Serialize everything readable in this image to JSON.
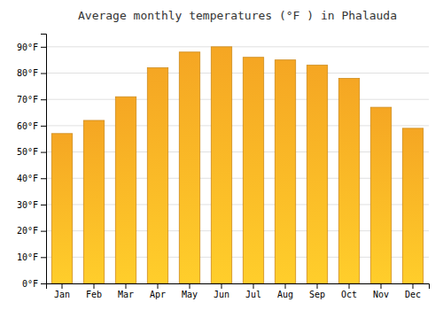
{
  "chart_data": {
    "type": "bar",
    "title": "Average monthly temperatures (°F ) in Phalauda",
    "categories": [
      "Jan",
      "Feb",
      "Mar",
      "Apr",
      "May",
      "Jun",
      "Jul",
      "Aug",
      "Sep",
      "Oct",
      "Nov",
      "Dec"
    ],
    "values": [
      57,
      62,
      71,
      82,
      88,
      90,
      86,
      85,
      83,
      78,
      67,
      59
    ],
    "color": "#F5A623",
    "ylim": [
      0,
      95
    ],
    "yticks": [
      {
        "value": 0,
        "label": "0°F"
      },
      {
        "value": 10,
        "label": "10°F"
      },
      {
        "value": 20,
        "label": "20°F"
      },
      {
        "value": 30,
        "label": "30°F"
      },
      {
        "value": 40,
        "label": "40°F"
      },
      {
        "value": 50,
        "label": "50°F"
      },
      {
        "value": 60,
        "label": "60°F"
      },
      {
        "value": 70,
        "label": "70°F"
      },
      {
        "value": 80,
        "label": "80°F"
      },
      {
        "value": 90,
        "label": "90°F"
      }
    ],
    "grid": true
  }
}
